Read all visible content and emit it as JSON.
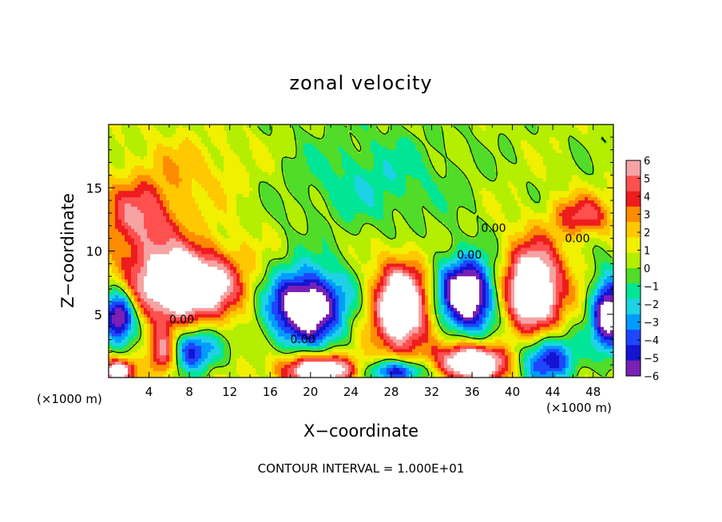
{
  "chart_data": {
    "type": "heatmap",
    "title": "zonal velocity",
    "xlabel": "X−coordinate",
    "ylabel": "Z−coordinate",
    "x_unit_left": "(×1000 m)",
    "x_unit_right": "(×1000 m)",
    "footer": "CONTOUR INTERVAL = 1.000E+01",
    "xlim": [
      0,
      50
    ],
    "ylim": [
      0,
      20
    ],
    "x_ticks": [
      "4",
      "8",
      "12",
      "16",
      "20",
      "24",
      "28",
      "32",
      "36",
      "40",
      "44",
      "48"
    ],
    "x_tick_values": [
      4,
      8,
      12,
      16,
      20,
      24,
      28,
      32,
      36,
      40,
      44,
      48
    ],
    "y_ticks": [
      "5",
      "10",
      "15"
    ],
    "y_tick_values": [
      5,
      10,
      15
    ],
    "colorbar": {
      "labels": [
        "6",
        "5",
        "4",
        "3",
        "2",
        "1",
        "0",
        "−1",
        "−2",
        "−3",
        "−4",
        "−5",
        "−6"
      ],
      "min": -6,
      "max": 6,
      "colors": [
        "#f5a3a3",
        "#ff5050",
        "#ee1c1c",
        "#ff8c00",
        "#ffc800",
        "#f0f000",
        "#b4ee00",
        "#50dc28",
        "#00e696",
        "#1ed2e6",
        "#009cff",
        "#1e46ff",
        "#1414d2",
        "#7a20b4"
      ]
    },
    "contour_labels": [
      {
        "text": "0.00",
        "x": 36.9,
        "y": 11.5
      },
      {
        "text": "0.00",
        "x": 45.2,
        "y": 10.7
      },
      {
        "text": "0.00",
        "x": 34.5,
        "y": 9.4
      },
      {
        "text": "0.00",
        "x": 6.0,
        "y": 4.3
      },
      {
        "text": "0.00",
        "x": 18.0,
        "y": 2.7
      }
    ],
    "features": [
      {
        "kind": "positive",
        "cx": 7.5,
        "cy": 7.3,
        "rx": 5.5,
        "ry": 3.0,
        "amp": 9
      },
      {
        "kind": "positive",
        "cx": 3.0,
        "cy": 12.5,
        "rx": 4.0,
        "ry": 3.0,
        "amp": 4.5
      },
      {
        "kind": "negative",
        "cx": 19.5,
        "cy": 5.6,
        "rx": 4.0,
        "ry": 3.0,
        "amp": -9
      },
      {
        "kind": "positive",
        "cx": 29.0,
        "cy": 5.5,
        "rx": 2.8,
        "ry": 3.5,
        "amp": 9
      },
      {
        "kind": "negative",
        "cx": 35.5,
        "cy": 6.5,
        "rx": 3.0,
        "ry": 3.0,
        "amp": -9
      },
      {
        "kind": "positive",
        "cx": 42.0,
        "cy": 7.0,
        "rx": 3.0,
        "ry": 3.5,
        "amp": 9
      },
      {
        "kind": "negative",
        "cx": 1.0,
        "cy": 5.0,
        "rx": 1.7,
        "ry": 2.2,
        "amp": -8
      },
      {
        "kind": "negative",
        "cx": 49.5,
        "cy": 5.0,
        "rx": 1.7,
        "ry": 3.0,
        "amp": -8
      },
      {
        "kind": "negative",
        "cx": 8.0,
        "cy": 2.2,
        "rx": 3.0,
        "ry": 1.8,
        "amp": -6
      },
      {
        "kind": "positive",
        "cx": 5.5,
        "cy": 2.0,
        "rx": 1.5,
        "ry": 1.8,
        "amp": 7
      },
      {
        "kind": "positive",
        "cx": 21.0,
        "cy": 0.6,
        "rx": 4.0,
        "ry": 1.2,
        "amp": 8
      },
      {
        "kind": "negative",
        "cx": 28.5,
        "cy": 0.5,
        "rx": 3.0,
        "ry": 1.0,
        "amp": -7
      },
      {
        "kind": "positive",
        "cx": 36.0,
        "cy": 1.2,
        "rx": 3.5,
        "ry": 1.5,
        "amp": 9
      },
      {
        "kind": "negative",
        "cx": 43.5,
        "cy": 1.5,
        "rx": 3.0,
        "ry": 2.0,
        "amp": -6
      },
      {
        "kind": "positive",
        "cx": 1.0,
        "cy": 0.5,
        "rx": 1.5,
        "ry": 1.0,
        "amp": 7
      },
      {
        "kind": "positive",
        "cx": 47.0,
        "cy": 12.8,
        "rx": 3.0,
        "ry": 1.6,
        "amp": 4
      },
      {
        "kind": "negative",
        "cx": 26.0,
        "cy": 15.5,
        "rx": 8.0,
        "ry": 4.0,
        "amp": -2
      },
      {
        "kind": "positive",
        "cx": 8.0,
        "cy": 16.5,
        "rx": 6.0,
        "ry": 3.0,
        "amp": 1.5
      }
    ]
  }
}
